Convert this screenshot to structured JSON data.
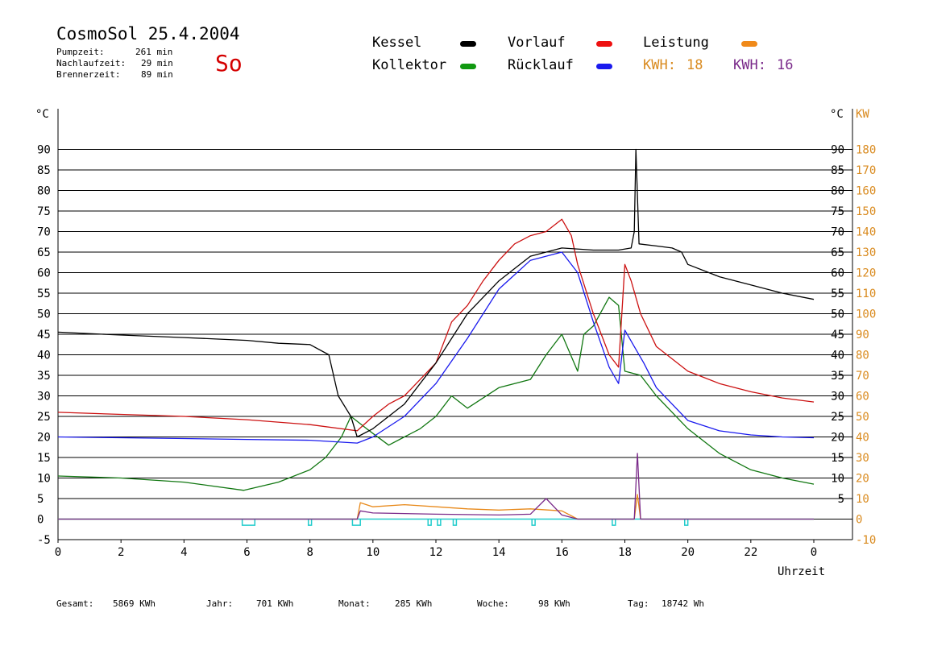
{
  "header": {
    "title": "CosmoSol 25.4.2004",
    "day": "So",
    "pumpzeit_label": "Pumpzeit:",
    "pumpzeit_value": "261 min",
    "nachlaufzeit_label": "Nachlaufzeit:",
    "nachlaufzeit_value": "29 min",
    "brennerzeit_label": "Brennerzeit:",
    "brennerzeit_value": "89 min"
  },
  "legend": {
    "kessel": "Kessel",
    "vorlauf": "Vorlauf",
    "leistung": "Leistung",
    "kollektor": "Kollektor",
    "ruecklauf": "Rücklauf",
    "kwh1_label": "KWH:",
    "kwh1_value": "18",
    "kwh2_label": "KWH:",
    "kwh2_value": "16"
  },
  "colors": {
    "kessel": "#000000",
    "vorlauf": "#cc1111",
    "leistung": "#e8891a",
    "kollektor": "#117711",
    "ruecklauf": "#1a1aee",
    "kwh1": "#d98a1e",
    "kwh2": "#7a2a8a",
    "pump": "#22cccc",
    "grid": "#000000"
  },
  "footer": {
    "gesamt_label": "Gesamt:",
    "gesamt_value": "5869 KWh",
    "jahr_label": "Jahr:",
    "jahr_value": "701 KWh",
    "monat_label": "Monat:",
    "monat_value": "285 KWh",
    "woche_label": "Woche:",
    "woche_value": "98 KWh",
    "tag_label": "Tag:",
    "tag_value": "18742 Wh"
  },
  "chart_data": {
    "type": "line",
    "xlabel": "Uhrzeit",
    "ylabel_left": "°C",
    "ylabel_right": "KW",
    "xlim": [
      0,
      24
    ],
    "ylim": [
      -5,
      95
    ],
    "ylim_right": [
      -10,
      190
    ],
    "x_ticks": [
      "0",
      "2",
      "4",
      "6",
      "8",
      "10",
      "12",
      "14",
      "16",
      "18",
      "20",
      "22",
      "0"
    ],
    "y_ticks": [
      -5,
      0,
      5,
      10,
      15,
      20,
      25,
      30,
      35,
      40,
      45,
      50,
      55,
      60,
      65,
      70,
      75,
      80,
      85,
      90
    ],
    "y_ticks_right": [
      0,
      10,
      20,
      30,
      40,
      50,
      60,
      70,
      80,
      90,
      100,
      110,
      120,
      130,
      140,
      150,
      160,
      170,
      180
    ],
    "y_ticks_right_side_degrees": [
      5,
      10,
      15,
      20,
      25,
      30,
      35,
      40,
      45,
      50,
      55,
      60,
      65,
      70,
      75,
      80,
      85,
      90
    ],
    "grid": true,
    "series": [
      {
        "name": "Kessel",
        "color": "#000000",
        "points": [
          [
            0,
            45.5
          ],
          [
            2,
            44.8
          ],
          [
            4,
            44.2
          ],
          [
            6,
            43.5
          ],
          [
            7,
            42.8
          ],
          [
            8,
            42.5
          ],
          [
            8.6,
            40
          ],
          [
            8.9,
            30
          ],
          [
            9.3,
            25
          ],
          [
            9.5,
            20
          ],
          [
            10,
            22
          ],
          [
            11,
            28
          ],
          [
            12,
            38
          ],
          [
            13,
            50
          ],
          [
            14,
            58
          ],
          [
            15,
            64
          ],
          [
            16,
            66
          ],
          [
            17,
            65.5
          ],
          [
            17.8,
            65.5
          ],
          [
            18.2,
            66
          ],
          [
            18.3,
            70
          ],
          [
            18.35,
            90
          ],
          [
            18.45,
            67
          ],
          [
            19,
            66.5
          ],
          [
            19.5,
            66
          ],
          [
            19.8,
            65
          ],
          [
            20,
            62
          ],
          [
            21,
            59
          ],
          [
            22,
            57
          ],
          [
            23,
            55
          ],
          [
            24,
            53.5
          ]
        ]
      },
      {
        "name": "Vorlauf",
        "color": "#cc1111",
        "points": [
          [
            0,
            26
          ],
          [
            2,
            25.5
          ],
          [
            4,
            25
          ],
          [
            6,
            24.2
          ],
          [
            8,
            23
          ],
          [
            9.5,
            21.5
          ],
          [
            10,
            25
          ],
          [
            10.5,
            28
          ],
          [
            11,
            30
          ],
          [
            11.5,
            34
          ],
          [
            12,
            38
          ],
          [
            12.5,
            48
          ],
          [
            13,
            52
          ],
          [
            13.5,
            58
          ],
          [
            14,
            63
          ],
          [
            14.5,
            67
          ],
          [
            15,
            69
          ],
          [
            15.5,
            70
          ],
          [
            16,
            73
          ],
          [
            16.3,
            69
          ],
          [
            16.5,
            62
          ],
          [
            17,
            50
          ],
          [
            17.5,
            40
          ],
          [
            17.8,
            37
          ],
          [
            18,
            62
          ],
          [
            18.2,
            58
          ],
          [
            18.5,
            50
          ],
          [
            19,
            42
          ],
          [
            20,
            36
          ],
          [
            21,
            33
          ],
          [
            22,
            31
          ],
          [
            23,
            29.5
          ],
          [
            24,
            28.5
          ]
        ]
      },
      {
        "name": "Rücklauf",
        "color": "#1a1aee",
        "points": [
          [
            0,
            20
          ],
          [
            2,
            19.8
          ],
          [
            4,
            19.6
          ],
          [
            6,
            19.4
          ],
          [
            8,
            19.2
          ],
          [
            9.5,
            18.5
          ],
          [
            10,
            20
          ],
          [
            11,
            25
          ],
          [
            12,
            33
          ],
          [
            13,
            44
          ],
          [
            14,
            56
          ],
          [
            15,
            63
          ],
          [
            15.5,
            64
          ],
          [
            16,
            65
          ],
          [
            16.5,
            60
          ],
          [
            17,
            48
          ],
          [
            17.5,
            37
          ],
          [
            17.8,
            33
          ],
          [
            18,
            46
          ],
          [
            18.3,
            42
          ],
          [
            18.6,
            38
          ],
          [
            19,
            32
          ],
          [
            20,
            24
          ],
          [
            21,
            21.5
          ],
          [
            22,
            20.5
          ],
          [
            23,
            20
          ],
          [
            24,
            19.8
          ]
        ]
      },
      {
        "name": "Kollektor",
        "color": "#117711",
        "points": [
          [
            0,
            10.5
          ],
          [
            2,
            10
          ],
          [
            4,
            9
          ],
          [
            5.9,
            7
          ],
          [
            7,
            9
          ],
          [
            8,
            12
          ],
          [
            8.5,
            15
          ],
          [
            9,
            20
          ],
          [
            9.3,
            25
          ],
          [
            9.8,
            22
          ],
          [
            10.5,
            18
          ],
          [
            11,
            20
          ],
          [
            11.5,
            22
          ],
          [
            12,
            25
          ],
          [
            12.5,
            30
          ],
          [
            13,
            27
          ],
          [
            14,
            32
          ],
          [
            15,
            34
          ],
          [
            15.5,
            40
          ],
          [
            16,
            45
          ],
          [
            16.5,
            36
          ],
          [
            16.7,
            45
          ],
          [
            17,
            47
          ],
          [
            17.5,
            54
          ],
          [
            17.8,
            52
          ],
          [
            18,
            36
          ],
          [
            18.5,
            35
          ],
          [
            19,
            30
          ],
          [
            20,
            22
          ],
          [
            21,
            16
          ],
          [
            22,
            12
          ],
          [
            23,
            10
          ],
          [
            24,
            8.5
          ]
        ]
      },
      {
        "name": "Leistung",
        "color": "#e8891a",
        "points": [
          [
            0,
            0
          ],
          [
            9.5,
            0
          ],
          [
            9.6,
            4
          ],
          [
            10,
            3
          ],
          [
            11,
            3.5
          ],
          [
            12,
            3
          ],
          [
            13,
            2.5
          ],
          [
            14,
            2.2
          ],
          [
            15,
            2.5
          ],
          [
            16,
            2
          ],
          [
            16.5,
            0
          ],
          [
            18.3,
            0
          ],
          [
            18.4,
            6
          ],
          [
            18.5,
            0
          ],
          [
            24,
            0
          ]
        ]
      },
      {
        "name": "KWH",
        "color": "#7a2a8a",
        "points": [
          [
            0,
            0
          ],
          [
            9.5,
            0
          ],
          [
            9.6,
            2
          ],
          [
            10,
            1.5
          ],
          [
            12,
            1.2
          ],
          [
            14,
            1
          ],
          [
            15,
            1.2
          ],
          [
            15.5,
            5
          ],
          [
            16,
            1
          ],
          [
            16.5,
            0
          ],
          [
            18.3,
            0
          ],
          [
            18.4,
            16
          ],
          [
            18.5,
            0
          ],
          [
            24,
            0
          ]
        ]
      }
    ]
  }
}
